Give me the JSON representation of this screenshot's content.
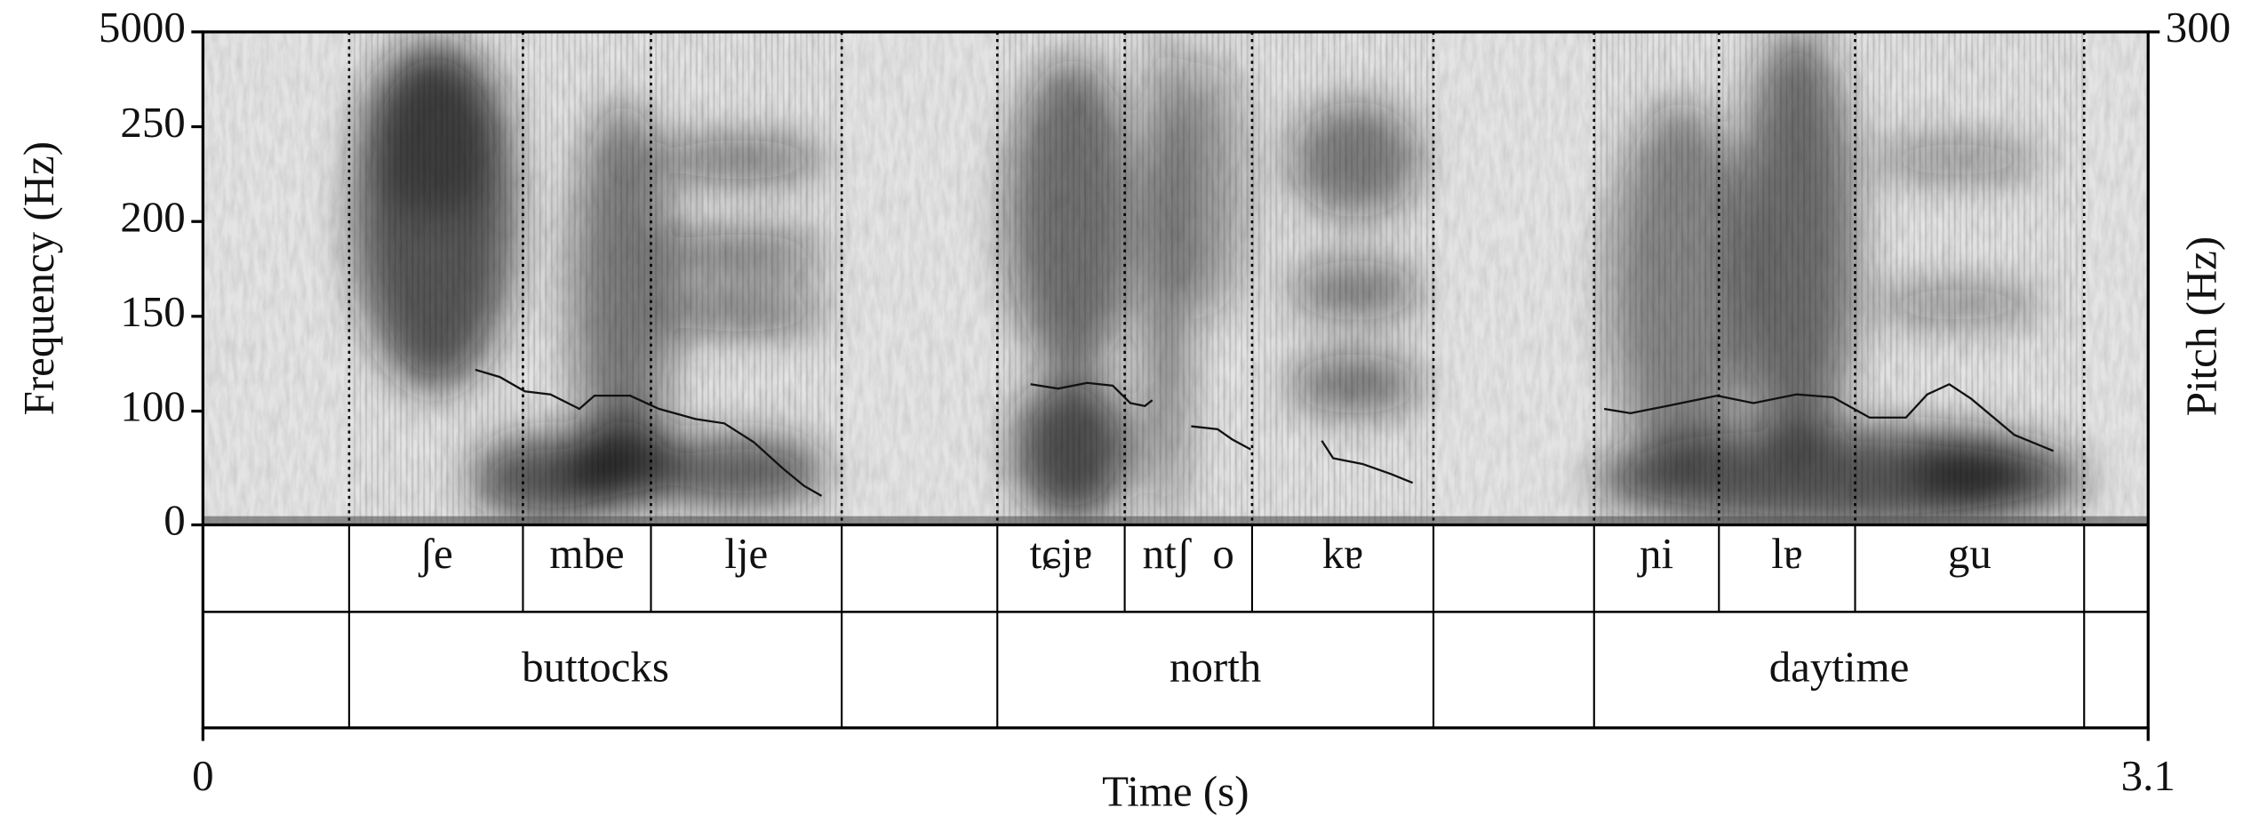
{
  "chart_data": {
    "type": "spectrogram",
    "ylabel": "Frequency (Hz)",
    "y2label": "Pitch (Hz)",
    "xlabel": "Time (s)",
    "xlim": [
      0,
      3.1
    ],
    "xticks": [
      0,
      3.1
    ],
    "ylim": [
      0,
      5000
    ],
    "yticks": [
      0,
      5000
    ],
    "y2lim": [
      40,
      300
    ],
    "y2ticks": [
      100,
      150,
      200,
      250,
      300
    ],
    "pitch": {
      "color": "#111111",
      "x": [
        0.434,
        0.473,
        0.513,
        0.554,
        0.6,
        0.624,
        0.681,
        0.727,
        0.785,
        0.831,
        0.878,
        0.924,
        0.958,
        0.986,
        null,
        1.319,
        1.363,
        1.409,
        1.45,
        1.478,
        1.501,
        1.513,
        null,
        1.575,
        1.617,
        1.64,
        1.67,
        null,
        1.783,
        1.801,
        1.848,
        1.894,
        1.928,
        null,
        2.233,
        2.275,
        2.333,
        2.413,
        2.471,
        2.54,
        2.598,
        2.656,
        2.714,
        2.748,
        2.783,
        2.818,
        2.887,
        2.949
      ],
      "values": [
        121.8,
        118.0,
        110.4,
        108.8,
        101.2,
        108.1,
        108.1,
        101.2,
        95.8,
        93.5,
        83.6,
        69.8,
        60.6,
        55.3,
        null,
        114.2,
        111.9,
        114.9,
        113.4,
        104.2,
        102.7,
        105.8,
        null,
        92.0,
        90.5,
        85.1,
        79.8,
        null,
        84.4,
        75.2,
        72.1,
        66.8,
        62.2,
        null,
        101.2,
        98.9,
        102.7,
        108.1,
        104.2,
        108.8,
        107.3,
        96.6,
        96.6,
        108.8,
        114.2,
        106.5,
        87.4,
        79.0
      ]
    },
    "tiers": [
      {
        "bounds": [
          0,
          0.233,
          0.51,
          0.714,
          1.018,
          1.266,
          1.469,
          1.672,
          1.961,
          2.217,
          2.416,
          2.633,
          2.998,
          3.1
        ],
        "labels": [
          null,
          "ʃe",
          "mbe",
          "lje",
          null,
          "tɕjɐ",
          "ntʃ  o",
          "kɐ",
          null,
          "ɲi",
          "lɐ",
          "gu",
          null
        ]
      },
      {
        "bounds": [
          0,
          0.233,
          1.018,
          1.266,
          1.961,
          2.217,
          2.998,
          3.1
        ],
        "labels": [
          null,
          "buttocks",
          null,
          "north",
          null,
          "daytime",
          null
        ]
      }
    ]
  }
}
